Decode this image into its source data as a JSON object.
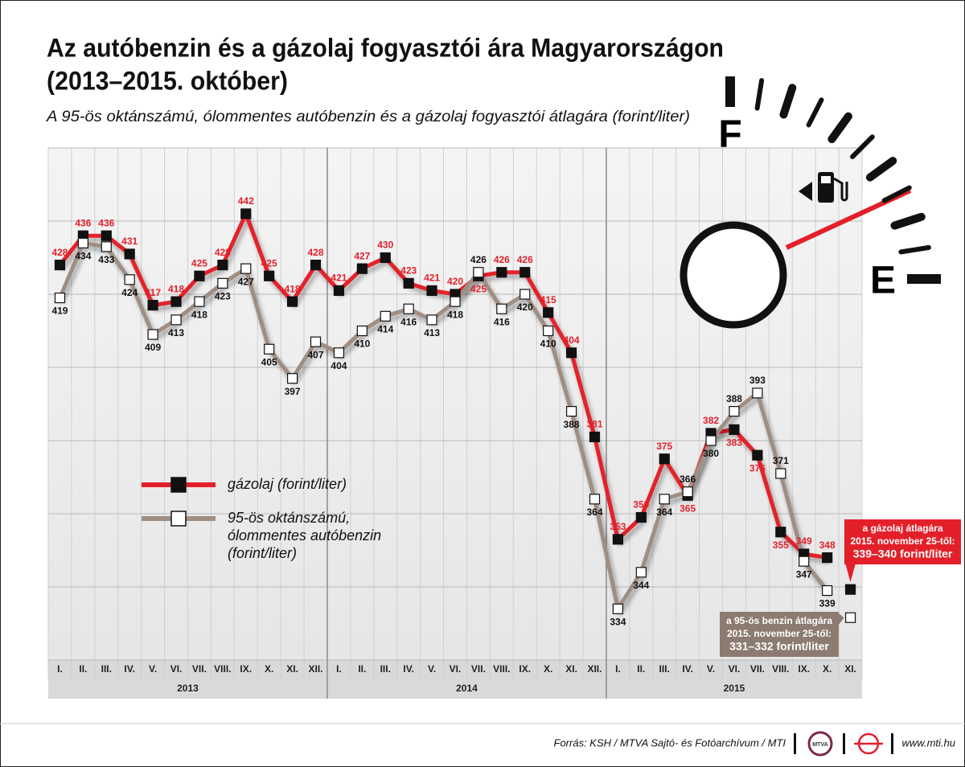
{
  "chart_data": {
    "type": "line",
    "title": [
      "Az autóbenzin és a gázolaj fogyasztói ára Magyarországon",
      "(2013–2015. október)"
    ],
    "subtitle": "A 95-ös oktánszámú, ólommentes autóbenzin és a gázolaj fogyasztói átlagára (forint/liter)",
    "categories": [
      "I.",
      "II.",
      "III.",
      "IV.",
      "V.",
      "VI.",
      "VII.",
      "VIII.",
      "IX.",
      "X.",
      "XI.",
      "XII.",
      "I.",
      "II.",
      "III.",
      "IV.",
      "V.",
      "VI.",
      "VII.",
      "VIII.",
      "IX.",
      "X.",
      "XI.",
      "XII.",
      "I.",
      "II.",
      "III.",
      "IV.",
      "V.",
      "VI.",
      "VII.",
      "VIII.",
      "IX.",
      "X.",
      "XI."
    ],
    "years": [
      "2013",
      "2014",
      "2015"
    ],
    "series": [
      {
        "name": "gázolaj (forint/liter)",
        "color": "#e3202a",
        "marker_color": "#111111",
        "label_color": "#e3202a",
        "values": [
          428,
          436,
          436,
          431,
          417,
          418,
          425,
          428,
          442,
          425,
          418,
          428,
          421,
          427,
          430,
          423,
          421,
          420,
          425,
          426,
          426,
          415,
          404,
          381,
          353,
          359,
          375,
          365,
          382,
          383,
          376,
          355,
          349,
          348,
          null
        ]
      },
      {
        "name": "95-ös oktánszámú, ólommentes autóbenzin (forint/liter)",
        "color": "#a08e82",
        "marker_color": "#ffffff",
        "label_color": "#111111",
        "values": [
          419,
          434,
          433,
          424,
          409,
          413,
          418,
          423,
          427,
          405,
          397,
          407,
          404,
          410,
          414,
          416,
          413,
          418,
          426,
          416,
          420,
          410,
          388,
          364,
          334,
          344,
          364,
          366,
          380,
          388,
          393,
          371,
          347,
          339,
          null
        ]
      }
    ],
    "annotations": [
      {
        "lines": [
          "a gázolaj átlagára",
          "2015. november 25-től:",
          "339–340 forint/liter"
        ],
        "value": 339.3,
        "color": "#e3202a",
        "marker_color": "#111111"
      },
      {
        "lines": [
          "a 95-ös benzin átlagára",
          "2015. november 25-től:",
          "331–332 forint/liter"
        ],
        "value": 331.6,
        "color": "#8c7b70",
        "marker_color": "#ffffff"
      }
    ],
    "ylim": [
      320,
      460
    ],
    "yticks": [
      320,
      340,
      360,
      380,
      400,
      420,
      440,
      460
    ],
    "grid": true,
    "gauge": {
      "full": "F",
      "empty": "E"
    },
    "footer": {
      "source": "Forrás: KSH / MTVA Sajtó- és Fotóarchívum / MTI",
      "logo": "MTVA",
      "url": "www.mti.hu"
    }
  }
}
